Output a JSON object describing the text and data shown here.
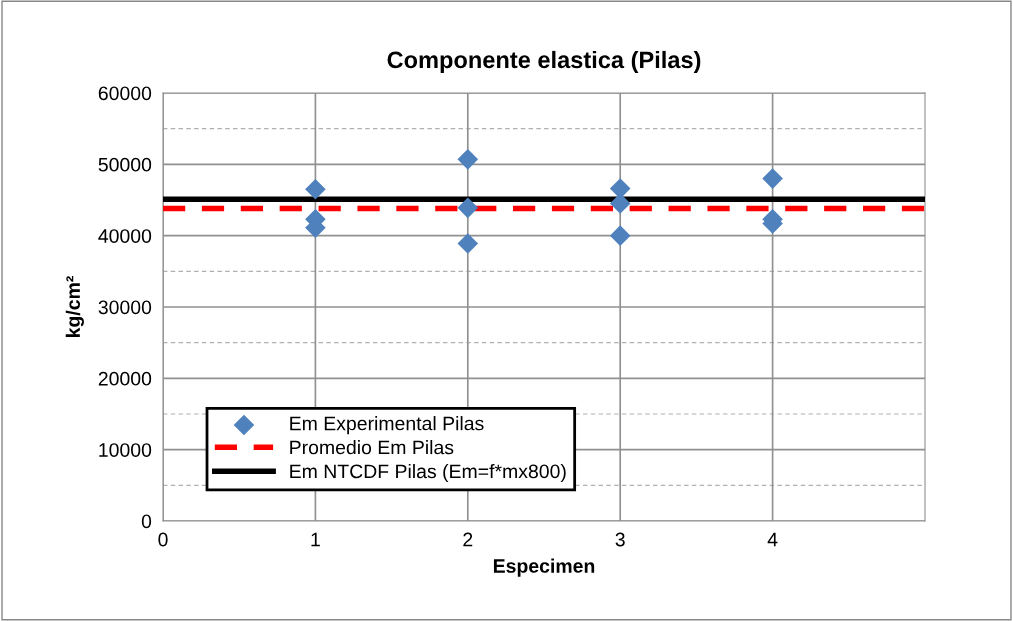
{
  "chart_data": {
    "type": "scatter",
    "title": "Componente elastica (Pilas)",
    "xlabel": "Especimen",
    "ylabel": "kg/cm²",
    "xlim": [
      0,
      5
    ],
    "xticks": [
      0,
      1,
      2,
      3,
      4
    ],
    "ylim": [
      0,
      60000
    ],
    "yticks": [
      0,
      10000,
      20000,
      30000,
      40000,
      50000,
      60000
    ],
    "grid": true,
    "legend": "bottom left",
    "marker": "diamond",
    "series": [
      {
        "name": "Em Experimental Pilas",
        "color": "#4f81bd",
        "x": [
          1,
          1,
          1,
          2,
          2,
          2,
          3,
          3,
          3,
          4,
          4,
          4
        ],
        "values": [
          46500,
          42300,
          41100,
          50700,
          43900,
          38900,
          46600,
          44500,
          40000,
          48000,
          42300,
          41700
        ]
      },
      {
        "name": "Promedio Em Pilas",
        "type": "line",
        "color": "#ff0000",
        "line_style": "dashed",
        "marker": "none",
        "x": [
          0,
          5
        ],
        "values": [
          43800,
          43800
        ]
      },
      {
        "name": "Em NTCDF Pilas (Em=f*mx800)",
        "type": "line",
        "color": "#000000",
        "line_style": "solid",
        "marker": "none",
        "x": [
          0,
          5
        ],
        "values": [
          45100,
          45100
        ]
      }
    ]
  }
}
